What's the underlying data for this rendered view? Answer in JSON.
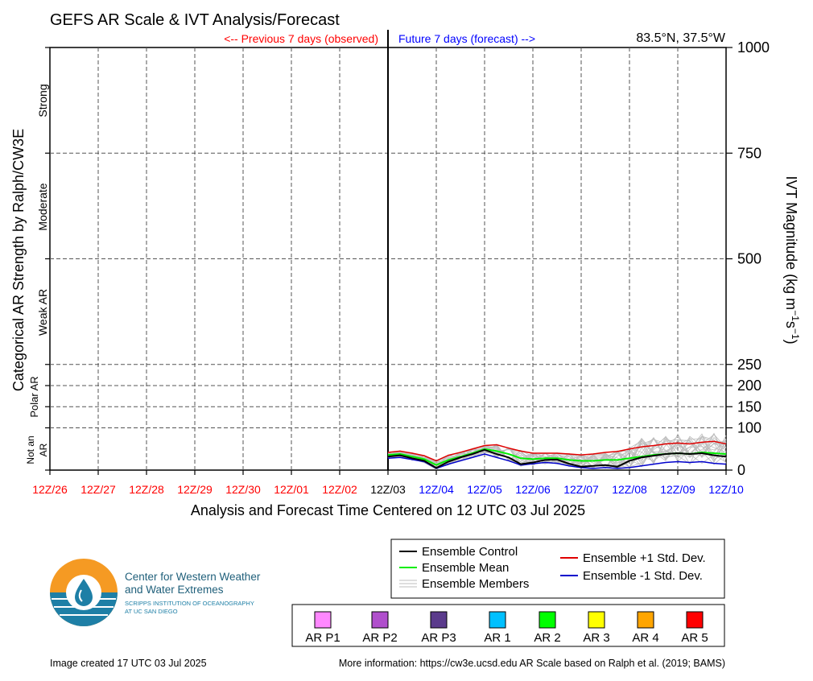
{
  "title": "GEFS AR Scale & IVT Analysis/Forecast",
  "previous_label": "<-- Previous 7 days (observed)",
  "future_label": "Future 7 days (forecast) -->",
  "location": "83.5°N, 37.5°W",
  "left_axis_title": "Categorical AR Strength by Ralph/CW3E",
  "right_axis_title_main": "IVT Magnitude (kg m",
  "right_axis_sup1": "−1",
  "right_axis_mid": "s",
  "right_axis_sup2": "−1",
  "right_axis_close": ")",
  "x_axis_title": "Analysis and Forecast Time Centered on 12 UTC 03 Jul 2025",
  "categories": {
    "strong": "Strong",
    "moderate": "Moderate",
    "weak": "Weak AR",
    "polar": [
      "Polar AR"
    ],
    "not_ar": [
      "Not an",
      "AR"
    ]
  },
  "legend": {
    "control": "Ensemble Control",
    "mean": "Ensemble Mean",
    "members": "Ensemble Members",
    "plus1": "Ensemble +1 Std. Dev.",
    "minus1": "Ensemble -1 Std. Dev."
  },
  "scale_legend": [
    {
      "label": "AR P1",
      "color": "#ff88ff"
    },
    {
      "label": "AR P2",
      "color": "#b04fcc"
    },
    {
      "label": "AR P3",
      "color": "#5b3b8c"
    },
    {
      "label": "AR 1",
      "color": "#00c0ff"
    },
    {
      "label": "AR 2",
      "color": "#00ff00"
    },
    {
      "label": "AR 3",
      "color": "#ffff00"
    },
    {
      "label": "AR 4",
      "color": "#ffa500"
    },
    {
      "label": "AR 5",
      "color": "#ff0000"
    }
  ],
  "logo": {
    "line1": "Center for Western Weather",
    "line2": "and Water Extremes",
    "line3": "SCRIPPS INSTITUTION OF OCEANOGRAPHY",
    "line4": "AT UC SAN DIEGO"
  },
  "footer_left": "Image created 17 UTC 03 Jul 2025",
  "footer_right": "More information: https://cw3e.ucsd.edu AR Scale based on Ralph et al. (2019; BAMS)",
  "colors": {
    "observed": "#ff0000",
    "forecast": "#0000ff",
    "control": "#000000",
    "mean": "#00ee00",
    "plus1": "#e00000",
    "minus1": "#0000cc",
    "members": "#bdbdbd"
  },
  "chart_data": {
    "type": "line",
    "x_ticks": [
      "12Z/26",
      "12Z/27",
      "12Z/28",
      "12Z/29",
      "12Z/30",
      "12Z/01",
      "12Z/02",
      "12Z/03",
      "12Z/04",
      "12Z/05",
      "12Z/06",
      "12Z/07",
      "12Z/08",
      "12Z/09",
      "12Z/10"
    ],
    "x_tick_observed_count": 7,
    "xlim": [
      0,
      14
    ],
    "ylim": [
      0,
      1000
    ],
    "y_ticks": [
      0,
      100,
      150,
      200,
      250,
      500,
      750,
      1000
    ],
    "y_gridlines": [
      100,
      150,
      200,
      250,
      500,
      750
    ],
    "category_boundaries": [
      100,
      250,
      500,
      750
    ],
    "x": [
      7.0,
      7.25,
      7.5,
      7.75,
      8.0,
      8.25,
      8.5,
      8.75,
      9.0,
      9.25,
      9.5,
      9.75,
      10.0,
      10.25,
      10.5,
      10.75,
      11.0,
      11.25,
      11.5,
      11.75,
      12.0,
      12.25,
      12.5,
      12.75,
      13.0,
      13.25,
      13.5,
      13.75,
      14.0
    ],
    "series": [
      {
        "name": "Ensemble Control",
        "values": [
          32,
          35,
          28,
          22,
          5,
          20,
          30,
          38,
          48,
          38,
          30,
          14,
          18,
          24,
          25,
          15,
          8,
          10,
          12,
          8,
          22,
          30,
          34,
          38,
          40,
          38,
          40,
          35,
          32
        ]
      },
      {
        "name": "Ensemble Mean",
        "values": [
          36,
          38,
          32,
          26,
          12,
          24,
          32,
          40,
          50,
          45,
          38,
          28,
          26,
          28,
          28,
          24,
          22,
          22,
          24,
          24,
          28,
          32,
          36,
          38,
          40,
          38,
          42,
          40,
          38
        ]
      },
      {
        "name": "Ensemble +1 Std. Dev.",
        "values": [
          42,
          45,
          40,
          34,
          22,
          35,
          42,
          50,
          58,
          60,
          52,
          45,
          40,
          40,
          40,
          38,
          36,
          38,
          42,
          44,
          50,
          55,
          58,
          62,
          64,
          62,
          66,
          68,
          62
        ]
      },
      {
        "name": "Ensemble -1 Std. Dev.",
        "values": [
          28,
          30,
          25,
          20,
          4,
          14,
          22,
          30,
          38,
          30,
          22,
          12,
          15,
          18,
          16,
          10,
          6,
          4,
          6,
          4,
          6,
          10,
          14,
          18,
          20,
          18,
          20,
          16,
          14
        ]
      }
    ]
  }
}
